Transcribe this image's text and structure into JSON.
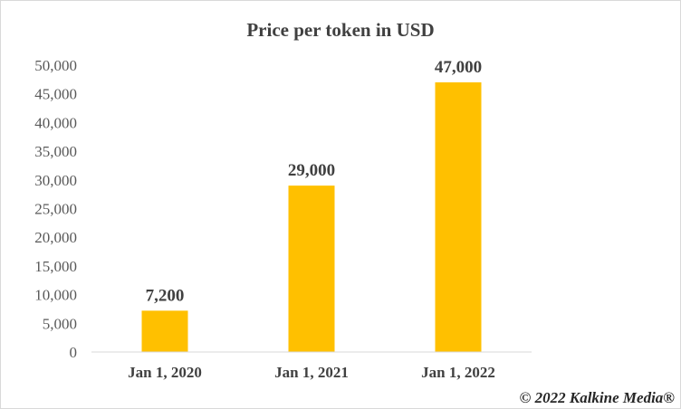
{
  "chart_data": {
    "type": "bar",
    "title": "Price per token in USD",
    "categories": [
      "Jan 1, 2020",
      "Jan 1, 2021",
      "Jan 1, 2022"
    ],
    "values": [
      7200,
      29000,
      47000
    ],
    "data_labels": [
      "7,200",
      "29,000",
      "47,000"
    ],
    "ylim": [
      0,
      50000
    ],
    "yticks": [
      0,
      5000,
      10000,
      15000,
      20000,
      25000,
      30000,
      35000,
      40000,
      45000,
      50000
    ],
    "ytick_labels": [
      "0",
      "5,000",
      "10,000",
      "15,000",
      "20,000",
      "25,000",
      "30,000",
      "35,000",
      "40,000",
      "45,000",
      "50,000"
    ],
    "bar_color": "#FFC000",
    "grid": false,
    "legend": "none"
  },
  "copyright": "© 2022 Kalkine Media®"
}
